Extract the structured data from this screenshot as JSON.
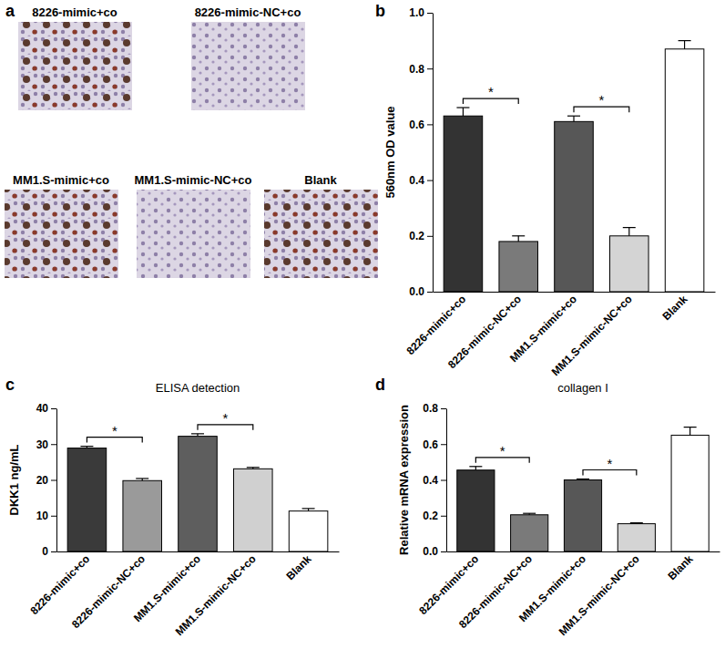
{
  "panel_a": {
    "panel_label": "a",
    "images": [
      {
        "label": "8226-mimic+co"
      },
      {
        "label": "8226-mimic-NC+co"
      },
      {
        "label": "MM1.S-mimic+co"
      },
      {
        "label": "MM1.S-mimic-NC+co"
      },
      {
        "label": "Blank"
      }
    ]
  },
  "chart_data": [
    {
      "type": "bar",
      "panel_label": "b",
      "y_label": "560nm OD value",
      "categories": [
        "8226-mimic+co",
        "8226-mimic-NC+co",
        "MM1.S-mimic+co",
        "MM1.S-mimic-NC+co",
        "Blank"
      ],
      "values": [
        0.63,
        0.18,
        0.61,
        0.2,
        0.87
      ],
      "errors": [
        0.03,
        0.02,
        0.02,
        0.03,
        0.03
      ],
      "colors": [
        "#333333",
        "#7a7a7a",
        "#575757",
        "#d4d4d4",
        "#ffffff"
      ],
      "ylim": [
        0,
        1.0
      ],
      "yticks": [
        {
          "value": 0,
          "label": "0.0"
        },
        {
          "value": 0.2,
          "label": "0.2"
        },
        {
          "value": 0.4,
          "label": "0.4"
        },
        {
          "value": 0.6,
          "label": "0.6"
        },
        {
          "value": 0.8,
          "label": "0.8"
        },
        {
          "value": 1.0,
          "label": "1.0"
        }
      ],
      "significance": [
        {
          "pair": [
            0,
            1
          ],
          "label": "*"
        },
        {
          "pair": [
            2,
            3
          ],
          "label": "*"
        }
      ]
    },
    {
      "type": "bar",
      "panel_label": "c",
      "title": "ELISA detection",
      "y_label": "DKK1 ng/mL",
      "categories": [
        "8226-mimic+co",
        "8226-mimic-NC+co",
        "MM1.S-mimic+co",
        "MM1.S-mimic-NC+co",
        "Blank"
      ],
      "values": [
        28.9,
        19.8,
        32.2,
        23.1,
        11.3
      ],
      "errors": [
        0.5,
        0.6,
        0.7,
        0.4,
        0.7
      ],
      "colors": [
        "#3a3a3a",
        "#9a9a9a",
        "#5e5e5e",
        "#d0d0d0",
        "#ffffff"
      ],
      "ylim": [
        0,
        40
      ],
      "yticks": [
        0,
        10,
        20,
        30,
        40
      ],
      "significance": [
        {
          "pair": [
            0,
            1
          ],
          "label": "*"
        },
        {
          "pair": [
            2,
            3
          ],
          "label": "*"
        }
      ]
    },
    {
      "type": "bar",
      "panel_label": "d",
      "title": "collagen I",
      "y_label": "Relative mRNA expression",
      "categories": [
        "8226-mimic+co",
        "8226-mimic-NC+co",
        "MM1.S-mimic+co",
        "MM1.S-mimic-NC+co",
        "Blank"
      ],
      "values": [
        0.455,
        0.205,
        0.4,
        0.155,
        0.65
      ],
      "errors": [
        0.02,
        0.008,
        0.005,
        0.005,
        0.045
      ],
      "colors": [
        "#333333",
        "#7a7a7a",
        "#575757",
        "#d4d4d4",
        "#ffffff"
      ],
      "ylim": [
        0,
        0.8
      ],
      "yticks": [
        {
          "value": 0,
          "label": "0.0"
        },
        {
          "value": 0.2,
          "label": "0.2"
        },
        {
          "value": 0.4,
          "label": "0.4"
        },
        {
          "value": 0.6,
          "label": "0.6"
        },
        {
          "value": 0.8,
          "label": "0.8"
        }
      ],
      "significance": [
        {
          "pair": [
            0,
            1
          ],
          "label": "*"
        },
        {
          "pair": [
            2,
            3
          ],
          "label": "*"
        }
      ]
    }
  ]
}
